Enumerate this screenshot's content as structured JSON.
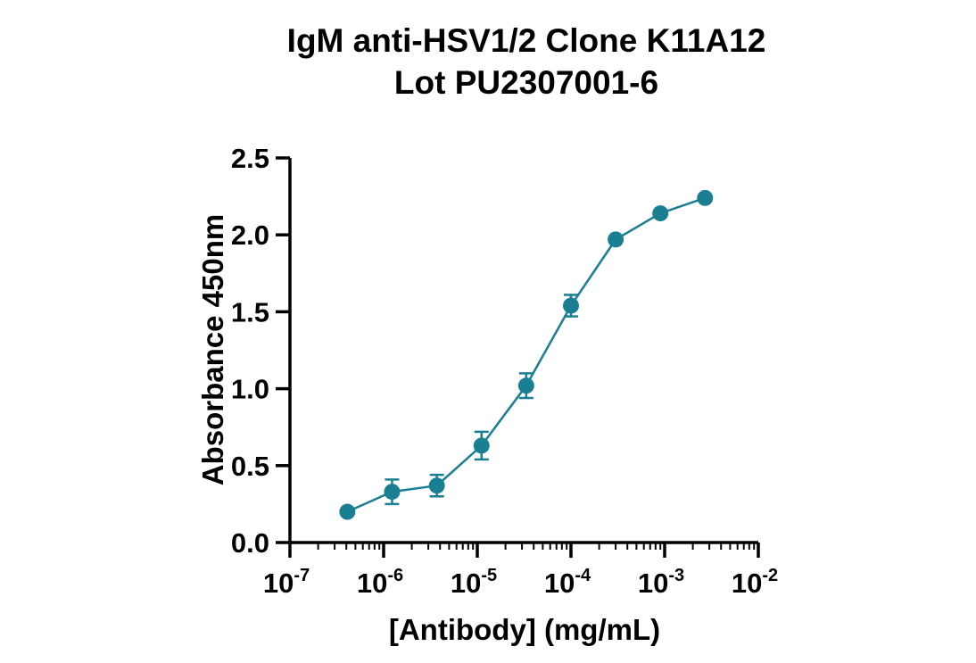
{
  "chart_data": {
    "type": "scatter",
    "title": [
      "IgM anti-HSV1/2 Clone K11A12",
      "Lot PU2307001-6"
    ],
    "xlabel": "[Antibody] (mg/mL)",
    "ylabel": "Absorbance 450nm",
    "x_scale": "log",
    "xlim": [
      1e-07,
      0.01
    ],
    "ylim": [
      0,
      2.5
    ],
    "x_ticks": [
      {
        "base": "10",
        "exp": "-7",
        "value": 1e-07
      },
      {
        "base": "10",
        "exp": "-6",
        "value": 1e-06
      },
      {
        "base": "10",
        "exp": "-5",
        "value": 1e-05
      },
      {
        "base": "10",
        "exp": "-4",
        "value": 0.0001
      },
      {
        "base": "10",
        "exp": "-3",
        "value": 0.001
      },
      {
        "base": "10",
        "exp": "-2",
        "value": 0.01
      }
    ],
    "y_ticks": [
      "0.0",
      "0.5",
      "1.0",
      "1.5",
      "2.0",
      "2.5"
    ],
    "color": "#1b7f94",
    "series": [
      {
        "x": [
          4.1e-07,
          1.23e-06,
          3.7e-06,
          1.11e-05,
          3.33e-05,
          0.0001,
          0.0003,
          0.0009,
          0.0027
        ],
        "y": [
          0.2,
          0.33,
          0.37,
          0.63,
          1.02,
          1.54,
          1.97,
          2.14,
          2.24
        ],
        "err": [
          0.0,
          0.08,
          0.07,
          0.09,
          0.08,
          0.07,
          0.0,
          0.0,
          0.0
        ]
      }
    ]
  }
}
